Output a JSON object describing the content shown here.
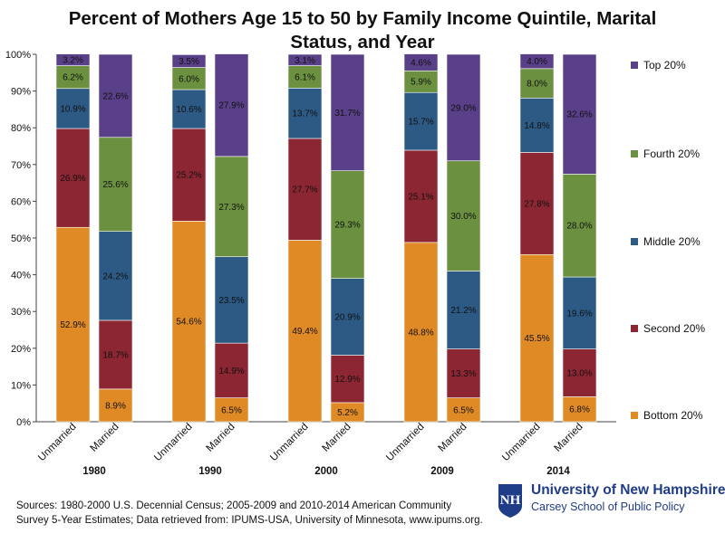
{
  "chart_data": {
    "type": "bar",
    "stacked": true,
    "title": "Percent of Mothers Age 15 to 50 by Family Income Quintile, Marital Status, and Year",
    "ylim": [
      0,
      100
    ],
    "y_ticks": [
      "0%",
      "10%",
      "20%",
      "30%",
      "40%",
      "50%",
      "60%",
      "70%",
      "80%",
      "90%",
      "100%"
    ],
    "groups": [
      "1980",
      "1990",
      "2000",
      "2009",
      "2014"
    ],
    "categories": [
      "Unmarried",
      "Married"
    ],
    "series": [
      {
        "name": "Bottom 20%",
        "color": "#e08a26",
        "values": [
          [
            52.9,
            8.9
          ],
          [
            54.6,
            6.5
          ],
          [
            49.4,
            5.2
          ],
          [
            48.8,
            6.5
          ],
          [
            45.5,
            6.8
          ]
        ],
        "labels": [
          [
            "52.9%",
            "8.9%"
          ],
          [
            "54.6%",
            "6.5%"
          ],
          [
            "49.4%",
            "5.2%"
          ],
          [
            "48.8%",
            "6.5%"
          ],
          [
            "45.5%",
            "6.8%"
          ]
        ]
      },
      {
        "name": "Second 20%",
        "color": "#8c2632",
        "values": [
          [
            26.9,
            18.7
          ],
          [
            25.2,
            14.9
          ],
          [
            27.7,
            12.9
          ],
          [
            25.1,
            13.3
          ],
          [
            27.8,
            13.0
          ]
        ],
        "labels": [
          [
            "26.9%",
            "18.7%"
          ],
          [
            "25.2%",
            "14.9%"
          ],
          [
            "27.7%",
            "12.9%"
          ],
          [
            "25.1%",
            "13.3%"
          ],
          [
            "27.8%",
            "13.0%"
          ]
        ]
      },
      {
        "name": "Middle 20%",
        "color": "#2d5a84",
        "values": [
          [
            10.9,
            24.2
          ],
          [
            10.6,
            23.5
          ],
          [
            13.7,
            20.9
          ],
          [
            15.7,
            21.2
          ],
          [
            14.8,
            19.6
          ]
        ],
        "labels": [
          [
            "10.9%",
            "24.2%"
          ],
          [
            "10.6%",
            "23.5%"
          ],
          [
            "13.7%",
            "20.9%"
          ],
          [
            "15.7%",
            "21.2%"
          ],
          [
            "14.8%",
            "19.6%"
          ]
        ]
      },
      {
        "name": "Fourth 20%",
        "color": "#6b9140",
        "values": [
          [
            6.2,
            25.6
          ],
          [
            6.0,
            27.3
          ],
          [
            6.1,
            29.3
          ],
          [
            5.9,
            30.0
          ],
          [
            8.0,
            28.0
          ]
        ],
        "labels": [
          [
            "6.2%",
            "25.6%"
          ],
          [
            "6.0%",
            "27.3%"
          ],
          [
            "6.1%",
            "29.3%"
          ],
          [
            "5.9%",
            "30.0%"
          ],
          [
            "8.0%",
            "28.0%"
          ]
        ]
      },
      {
        "name": "Top 20%",
        "color": "#5a4088",
        "values": [
          [
            3.2,
            22.6
          ],
          [
            3.5,
            27.9
          ],
          [
            3.1,
            31.7
          ],
          [
            4.6,
            29.0
          ],
          [
            4.0,
            32.6
          ]
        ],
        "labels": [
          [
            "3.2%",
            "22.6%"
          ],
          [
            "3.5%",
            "27.9%"
          ],
          [
            "3.1%",
            "31.7%"
          ],
          [
            "4.6%",
            "29.0%"
          ],
          [
            "4.0%",
            "32.6%"
          ]
        ]
      }
    ],
    "legend_order": [
      "Top 20%",
      "Fourth 20%",
      "Middle 20%",
      "Second 20%",
      "Bottom 20%"
    ],
    "legend_position": "right"
  },
  "footnote": {
    "line1": "Sources: 1980-2000 U.S. Decennial Census; 2005-2009 and 2010-2014 American Community",
    "line2": "Survey 5-Year Estimates; Data retrieved from: IPUMS-USA, University of Minnesota, www.ipums.org."
  },
  "logo": {
    "university": "University of New Hampshire",
    "school": "Carsey School of Public Policy",
    "mark": "UNH-mark-icon",
    "color": "#1f3c88"
  }
}
